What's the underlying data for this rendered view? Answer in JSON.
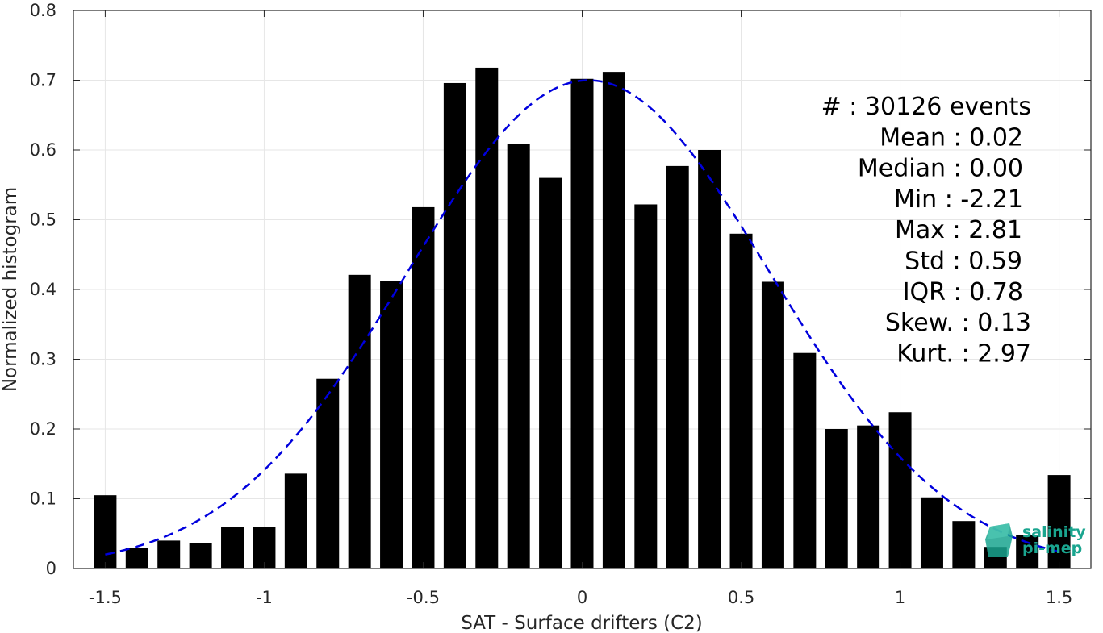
{
  "chart_data": {
    "type": "bar",
    "title": "",
    "xlabel": "SAT - Surface drifters (C2)",
    "ylabel": "Normalized histogram",
    "xlim": [
      -1.6,
      1.6
    ],
    "ylim": [
      0,
      0.8
    ],
    "grid": true,
    "xticks": [
      -1.5,
      -1,
      -0.5,
      0,
      0.5,
      1,
      1.5
    ],
    "xtick_labels": [
      "-1.5",
      "-1",
      "-0.5",
      "0",
      "0.5",
      "1",
      "1.5"
    ],
    "yticks": [
      0,
      0.1,
      0.2,
      0.3,
      0.4,
      0.5,
      0.6,
      0.7,
      0.8
    ],
    "ytick_labels": [
      "0",
      "0.1",
      "0.2",
      "0.3",
      "0.4",
      "0.5",
      "0.6",
      "0.7",
      "0.8"
    ],
    "bar_color": "#000000",
    "fit_color": "#0000dd",
    "bars": {
      "x": [
        -1.5,
        -1.4,
        -1.3,
        -1.2,
        -1.1,
        -1.0,
        -0.9,
        -0.8,
        -0.7,
        -0.6,
        -0.5,
        -0.4,
        -0.3,
        -0.2,
        -0.1,
        0.0,
        0.1,
        0.2,
        0.3,
        0.4,
        0.5,
        0.6,
        0.7,
        0.8,
        0.9,
        1.0,
        1.1,
        1.2,
        1.3,
        1.4,
        1.5
      ],
      "values": [
        0.105,
        0.029,
        0.04,
        0.036,
        0.059,
        0.06,
        0.136,
        0.272,
        0.421,
        0.412,
        0.518,
        0.696,
        0.718,
        0.609,
        0.56,
        0.702,
        0.712,
        0.522,
        0.577,
        0.6,
        0.48,
        0.411,
        0.309,
        0.2,
        0.205,
        0.224,
        0.102,
        0.068,
        0.031,
        0.048,
        0.134
      ]
    },
    "fit_curve": {
      "style": "dashed",
      "mean": 0.02,
      "peak": 0.7,
      "sigma": 0.57,
      "x_range": [
        -1.5,
        1.5
      ]
    },
    "stats": [
      {
        "label": "#",
        "sep": " : ",
        "value": "30126 events"
      },
      {
        "label": "Mean",
        "sep": " : ",
        "value": "0.02"
      },
      {
        "label": "Median",
        "sep": " : ",
        "value": "0.00"
      },
      {
        "label": "Min",
        "sep": " : ",
        "value": "-2.21"
      },
      {
        "label": "Max",
        "sep": " : ",
        "value": "2.81"
      },
      {
        "label": "Std",
        "sep": " : ",
        "value": "0.59"
      },
      {
        "label": "IQR",
        "sep": " : ",
        "value": "0.78"
      },
      {
        "label": "Skew.",
        "sep": " : ",
        "value": "0.13"
      },
      {
        "label": "Kurt.",
        "sep": " : ",
        "value": "2.97"
      }
    ],
    "logo": {
      "line1": "salinity",
      "line2": "pi-mep",
      "color": "#1aa58f"
    }
  }
}
